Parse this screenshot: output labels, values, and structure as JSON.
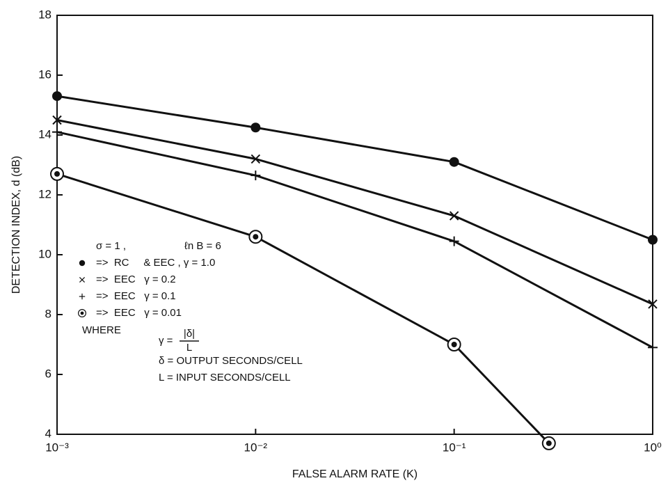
{
  "chart_data": {
    "type": "line",
    "xlabel": "FALSE ALARM RATE (K)",
    "ylabel": "DETECTION INDEX, d (dB)",
    "xscale": "log",
    "xlim": [
      0.001,
      1
    ],
    "ylim": [
      4,
      18
    ],
    "xticks": [
      {
        "value": 0.001,
        "label": "10⁻³"
      },
      {
        "value": 0.01,
        "label": "10⁻²"
      },
      {
        "value": 0.1,
        "label": "10⁻¹"
      },
      {
        "value": 1,
        "label": "10⁰"
      }
    ],
    "yticks": [
      4,
      6,
      8,
      10,
      12,
      14,
      16,
      18
    ],
    "grid": false,
    "series": [
      {
        "name": "=>  RC     & EEC , γ = 1.0",
        "color": "#111111",
        "marker": "dot",
        "x": [
          0.001,
          0.01,
          0.1,
          1
        ],
        "values": [
          15.3,
          14.25,
          13.1,
          10.5
        ]
      },
      {
        "name": "=>  EEC   γ = 0.2",
        "color": "#111111",
        "marker": "x",
        "x": [
          0.001,
          0.01,
          0.1,
          1
        ],
        "values": [
          14.5,
          13.2,
          11.3,
          8.35
        ]
      },
      {
        "name": "=>  EEC   γ = 0.1",
        "color": "#111111",
        "marker": "plus",
        "x": [
          0.001,
          0.01,
          0.1,
          1
        ],
        "values": [
          14.1,
          12.65,
          10.45,
          6.9
        ]
      },
      {
        "name": "=>  EEC   γ = 0.01",
        "color": "#111111",
        "marker": "circled-dot",
        "x": [
          0.001,
          0.01,
          0.1,
          0.3
        ],
        "values": [
          12.7,
          10.6,
          7.0,
          3.7
        ]
      }
    ],
    "annotations": [
      "σ = 1 ,",
      "ℓn B = 6",
      "WHERE",
      "γ =",
      "|δ|",
      "L",
      "δ = OUTPUT SECONDS/CELL",
      "L = INPUT SECONDS/CELL"
    ]
  }
}
